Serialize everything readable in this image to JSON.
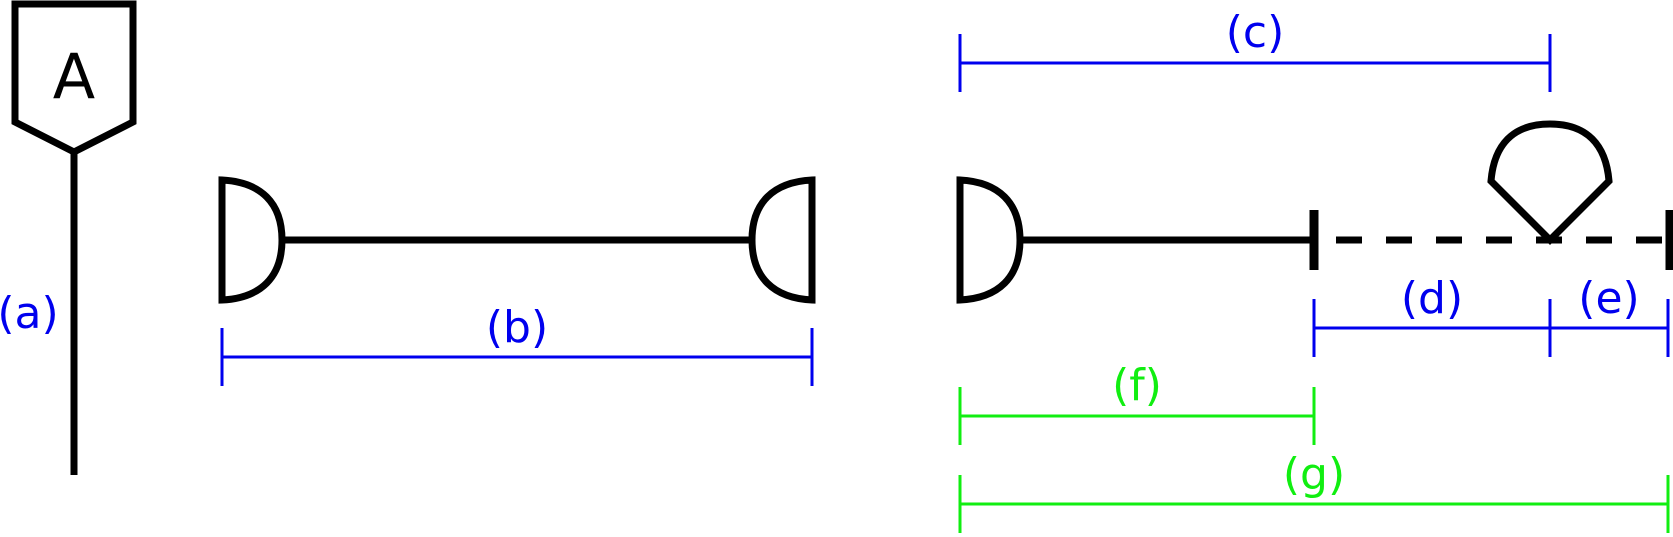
{
  "colors": {
    "structure": "#000000",
    "blue_dimension": "#0000ee",
    "green_dimension": "#11ee11",
    "background": "#ffffff"
  },
  "node_symbol": {
    "letter": "A"
  },
  "dimension_labels": {
    "a": "(a)",
    "b": "(b)",
    "c": "(c)",
    "d": "(d)",
    "e": "(e)",
    "f": "(f)",
    "g": "(g)"
  },
  "icons": [
    "pentagon-node-icon",
    "d-shape-left-icon",
    "d-shape-right-icon",
    "teardrop-marker-icon",
    "tick-mark-icon"
  ]
}
